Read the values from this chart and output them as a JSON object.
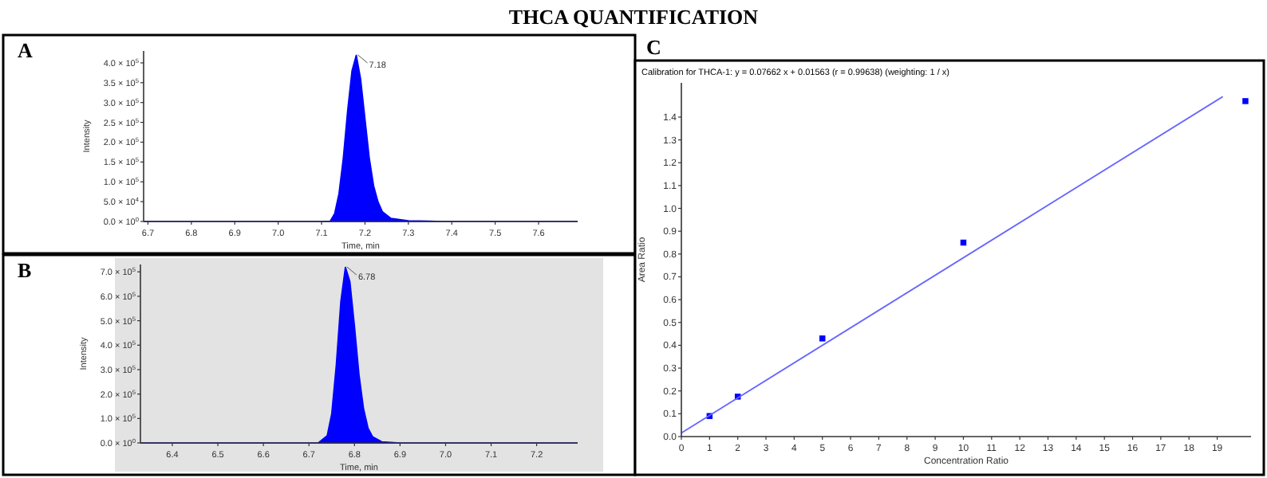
{
  "chart_data": [
    {
      "type": "area",
      "title": "THCA  QUANTIFICATION",
      "xlabel": "Time, min",
      "ylabel": "Intensity",
      "annotations": [
        "A",
        {
          "text": "7.18",
          "x": 7.18,
          "y": 420000
        }
      ],
      "xlim": [
        6.69,
        7.69
      ],
      "xticks": [
        6.7,
        6.8,
        6.9,
        {
          "value": 7,
          "label": "7.0"
        },
        7.1,
        7.2,
        7.3,
        7.4,
        7.5,
        7.6
      ],
      "ylim": [
        0,
        430000
      ],
      "yticks": [
        {
          "value": 0,
          "label": "0.0 × 10$^{0}$"
        },
        {
          "value": 50000,
          "label": "5.0 × 10$^{4}$"
        },
        {
          "value": 100000,
          "label": "1.0 × 10$^{5}$"
        },
        {
          "value": 150000,
          "label": "1.5 × 10$^{5}$"
        },
        {
          "value": 200000,
          "label": "2.0 × 10$^{5}$"
        },
        {
          "value": 250000,
          "label": "2.5 × 10$^{5}$"
        },
        {
          "value": 300000,
          "label": "3.0 × 10$^{5}$"
        },
        {
          "value": 350000,
          "label": "3.5 × 10$^{5}$"
        },
        {
          "value": 400000,
          "label": "4.0 × 10$^{5}$"
        }
      ],
      "series": [
        {
          "color": "#0000ff",
          "x": [
            6.69,
            7.1,
            7.12,
            7.13,
            7.14,
            7.15,
            7.16,
            7.17,
            7.18,
            7.19,
            7.2,
            7.21,
            7.22,
            7.23,
            7.24,
            7.26,
            7.3,
            7.35,
            7.38,
            7.69
          ],
          "values": [
            0,
            0,
            1000,
            20000,
            70000,
            160000,
            280000,
            380000,
            420000,
            360000,
            260000,
            160000,
            90000,
            50000,
            25000,
            8000,
            2000,
            1000,
            0,
            0
          ]
        }
      ]
    },
    {
      "type": "area",
      "xlabel": "Time, min",
      "ylabel": "Intensity",
      "annotations": [
        "B",
        {
          "text": "6.78",
          "x": 6.78,
          "y": 720000
        }
      ],
      "xlim": [
        6.33,
        7.29
      ],
      "xticks": [
        6.4,
        6.5,
        6.6,
        6.7,
        6.8,
        6.9,
        {
          "value": 7,
          "label": "7.0"
        },
        7.1,
        7.2
      ],
      "ylim": [
        0,
        730000
      ],
      "yticks": [
        {
          "value": 0,
          "label": "0.0 × 10$^{0}$"
        },
        {
          "value": 100000,
          "label": "1.0 × 10$^{5}$"
        },
        {
          "value": 200000,
          "label": "2.0 × 10$^{5}$"
        },
        {
          "value": 300000,
          "label": "3.0 × 10$^{5}$"
        },
        {
          "value": 400000,
          "label": "4.0 × 10$^{5}$"
        },
        {
          "value": 500000,
          "label": "5.0 × 10$^{5}$"
        },
        {
          "value": 600000,
          "label": "6.0 × 10$^{5}$"
        },
        {
          "value": 700000,
          "label": "7.0 × 10$^{5}$"
        }
      ],
      "series": [
        {
          "color": "#0000ff",
          "x": [
            6.33,
            6.72,
            6.74,
            6.75,
            6.76,
            6.77,
            6.78,
            6.79,
            6.8,
            6.81,
            6.82,
            6.83,
            6.84,
            6.86,
            6.9,
            7.29
          ],
          "values": [
            0,
            0,
            30000,
            120000,
            320000,
            580000,
            720000,
            660000,
            480000,
            280000,
            140000,
            60000,
            25000,
            5000,
            0,
            0
          ]
        }
      ]
    },
    {
      "type": "scatter",
      "title": "Calibration for THCA-1: y = 0.07662 x + 0.01563 (r = 0.99638)  (weighting: 1 / x)",
      "xlabel": "Concentration Ratio",
      "ylabel": "Area Ratio",
      "annotations": [
        "C"
      ],
      "xlim": [
        0,
        20.2
      ],
      "xticks": [
        0,
        1,
        2,
        3,
        4,
        5,
        6,
        7,
        8,
        9,
        10,
        11,
        12,
        13,
        14,
        15,
        16,
        17,
        18,
        19
      ],
      "ylim": [
        0,
        1.55
      ],
      "yticks": [
        {
          "value": 0,
          "label": "0.0"
        },
        0.1,
        0.2,
        0.3,
        0.4,
        0.5,
        0.6,
        0.7,
        0.8,
        0.9,
        {
          "value": 1,
          "label": "1.0"
        },
        1.1,
        1.2,
        1.3,
        1.4
      ],
      "series": [
        {
          "color": "#0000ff",
          "marker": "square",
          "x": [
            1,
            2,
            5,
            10,
            20
          ],
          "values": [
            0.09,
            0.175,
            0.43,
            0.85,
            1.47
          ]
        },
        {
          "type": "line",
          "marker": "none",
          "color": "#6666ff",
          "x": [
            0,
            19.2
          ],
          "values": [
            0.016,
            1.49
          ]
        }
      ]
    }
  ]
}
